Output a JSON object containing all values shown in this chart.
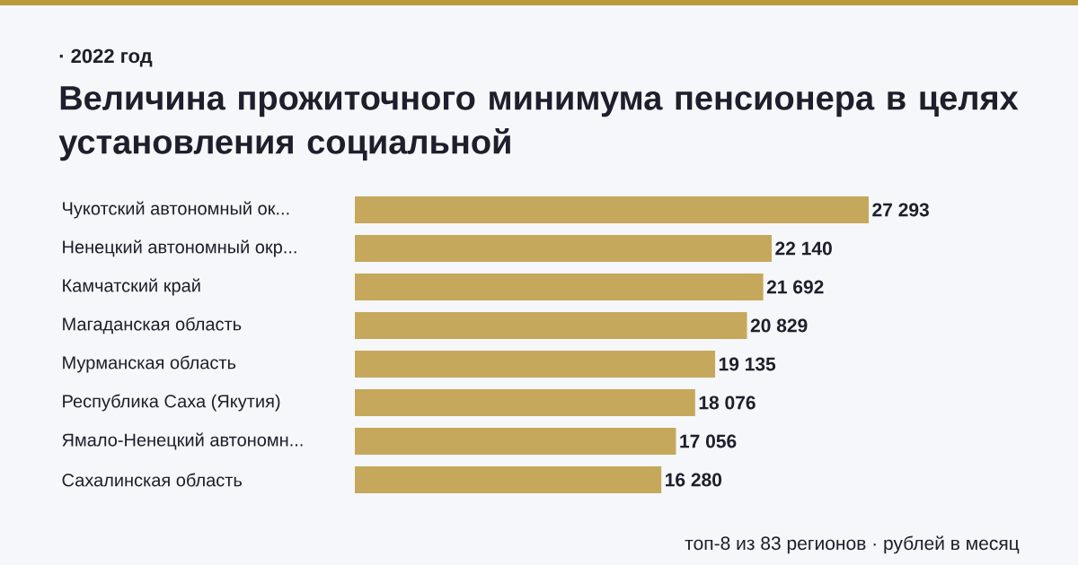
{
  "chart_data": {
    "type": "bar",
    "orientation": "horizontal",
    "title": "Величина прожиточного минимума пенсионера в целях установления социальной",
    "subtitle": "· 2022 год",
    "categories": [
      "Чукотский автономный ок...",
      "Ненецкий автономный окр...",
      "Камчатский край",
      "Магаданская область",
      "Мурманская область",
      "Республика Саха (Якутия)",
      "Ямало-Ненецкий автономн...",
      "Сахалинская область"
    ],
    "values": [
      27293,
      22140,
      21692,
      20829,
      19135,
      18076,
      17056,
      16280
    ],
    "value_labels": [
      "27 293",
      "22 140",
      "21 692",
      "20 829",
      "19 135",
      "18 076",
      "17 056",
      "16 280"
    ],
    "color": "#c6a85c",
    "annotations": [
      "топ-8 из 83 регионов · рублей в месяц"
    ]
  }
}
